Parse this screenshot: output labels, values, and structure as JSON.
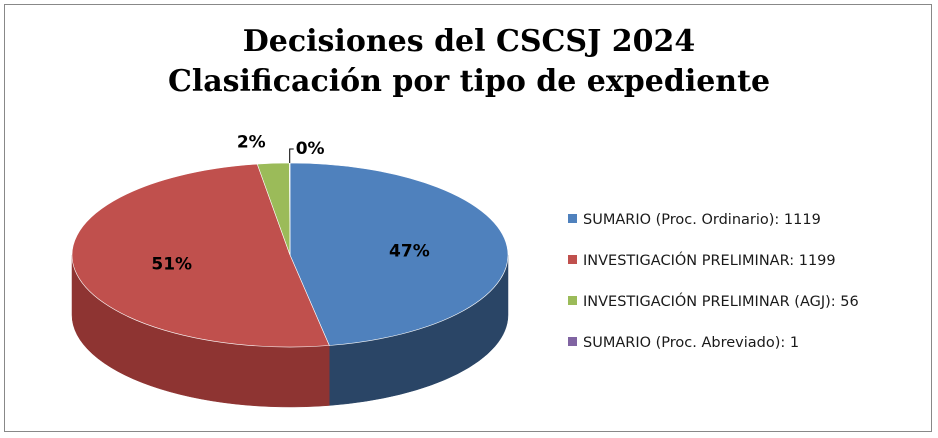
{
  "title_lines": [
    "Decisiones del CSCSJ 2024",
    "Clasificación por tipo de expediente"
  ],
  "chart_data": {
    "type": "pie",
    "title": "Decisiones del CSCSJ 2024 Clasificación por tipo de expediente",
    "three_d": true,
    "legend_position": "right",
    "slices": [
      {
        "label": "SUMARIO (Proc. Ordinario): 1119",
        "value": 1119,
        "percent_label": "47%",
        "color": "#4f81bd",
        "side_color": "#2a4566"
      },
      {
        "label": "INVESTIGACIÓN PRELIMINAR: 1199",
        "value": 1199,
        "percent_label": "51%",
        "color": "#c0504d",
        "side_color": "#8e3432"
      },
      {
        "label": "INVESTIGACIÓN PRELIMINAR (AGJ): 56",
        "value": 56,
        "percent_label": "2%",
        "color": "#9bbb59",
        "side_color": "#6b8a35"
      },
      {
        "label": "SUMARIO (Proc. Abreviado): 1",
        "value": 1,
        "percent_label": "0%",
        "color": "#8064a2",
        "side_color": "#5a4474"
      }
    ]
  }
}
